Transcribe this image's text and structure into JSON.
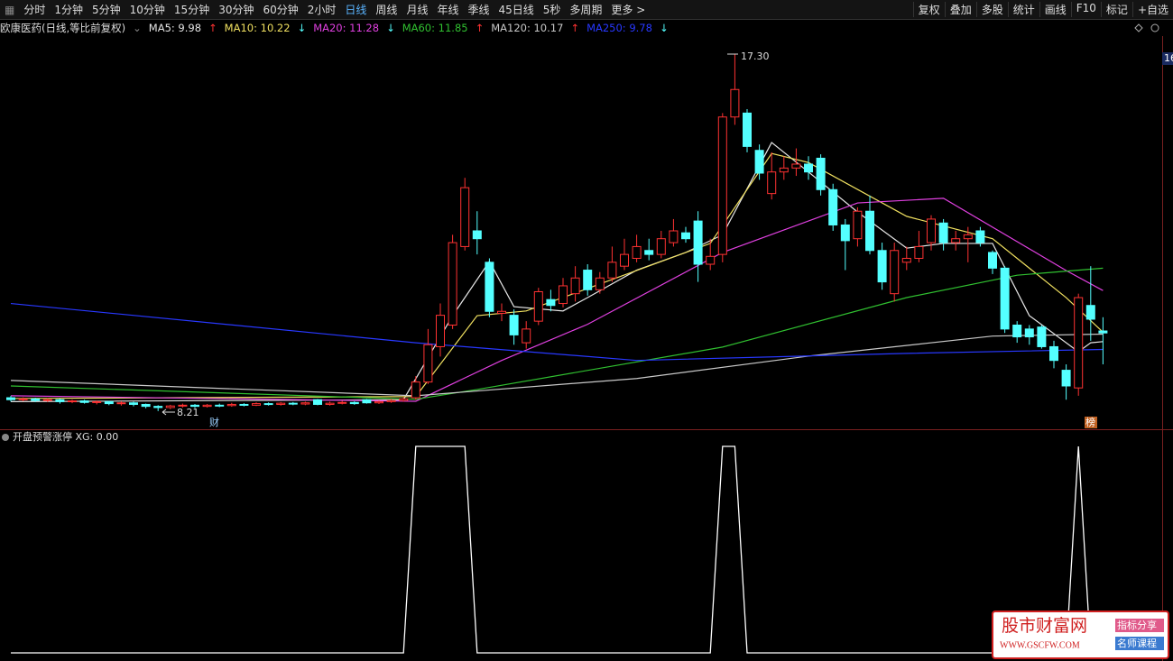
{
  "toolbar": {
    "left": [
      "分时",
      "1分钟",
      "5分钟",
      "10分钟",
      "15分钟",
      "30分钟",
      "60分钟",
      "2小时",
      "日线",
      "周线",
      "月线",
      "年线",
      "季线",
      "45日线",
      "5秒",
      "多周期",
      "更多 >"
    ],
    "selected_index": 8,
    "right": [
      "复权",
      "叠加",
      "多股",
      "统计",
      "画线",
      "F10",
      "标记",
      "+自选"
    ]
  },
  "chart_data": {
    "type": "candlestick",
    "title": "欧康医药(日线,等比前复权)",
    "ylim": [
      8.0,
      17.6
    ],
    "price_axis_label": "16",
    "candles": [
      [
        8.55,
        8.5,
        8.6,
        8.45
      ],
      [
        8.5,
        8.52,
        8.56,
        8.46
      ],
      [
        8.52,
        8.48,
        8.55,
        8.44
      ],
      [
        8.48,
        8.5,
        8.54,
        8.44
      ],
      [
        8.5,
        8.45,
        8.53,
        8.4
      ],
      [
        8.45,
        8.47,
        8.5,
        8.41
      ],
      [
        8.47,
        8.43,
        8.5,
        8.4
      ],
      [
        8.43,
        8.45,
        8.48,
        8.38
      ],
      [
        8.45,
        8.4,
        8.47,
        8.36
      ],
      [
        8.4,
        8.42,
        8.46,
        8.35
      ],
      [
        8.42,
        8.38,
        8.45,
        8.33
      ],
      [
        8.38,
        8.33,
        8.4,
        8.28
      ],
      [
        8.33,
        8.3,
        8.36,
        8.21
      ],
      [
        8.3,
        8.34,
        8.37,
        8.26
      ],
      [
        8.34,
        8.36,
        8.4,
        8.3
      ],
      [
        8.36,
        8.33,
        8.39,
        8.29
      ],
      [
        8.33,
        8.36,
        8.39,
        8.3
      ],
      [
        8.36,
        8.35,
        8.4,
        8.31
      ],
      [
        8.35,
        8.38,
        8.42,
        8.32
      ],
      [
        8.38,
        8.36,
        8.41,
        8.33
      ],
      [
        8.36,
        8.4,
        8.43,
        8.34
      ],
      [
        8.4,
        8.38,
        8.43,
        8.35
      ],
      [
        8.38,
        8.41,
        8.44,
        8.35
      ],
      [
        8.41,
        8.39,
        8.44,
        8.36
      ],
      [
        8.39,
        8.42,
        8.45,
        8.36
      ],
      [
        8.5,
        8.38,
        8.52,
        8.36
      ],
      [
        8.38,
        8.41,
        8.45,
        8.35
      ],
      [
        8.41,
        8.43,
        8.47,
        8.38
      ],
      [
        8.43,
        8.4,
        8.46,
        8.37
      ],
      [
        8.5,
        8.42,
        8.52,
        8.4
      ],
      [
        8.42,
        8.45,
        8.48,
        8.39
      ],
      [
        8.45,
        8.48,
        8.52,
        8.42
      ],
      [
        8.48,
        8.52,
        8.56,
        8.45
      ],
      [
        8.55,
        8.95,
        9.1,
        8.5
      ],
      [
        8.95,
        9.9,
        10.3,
        8.9
      ],
      [
        9.85,
        10.65,
        10.95,
        9.6
      ],
      [
        10.4,
        12.5,
        12.7,
        10.3
      ],
      [
        12.4,
        13.9,
        14.15,
        12.3
      ],
      [
        12.8,
        12.6,
        13.3,
        12.2
      ],
      [
        12.0,
        10.75,
        12.1,
        10.6
      ],
      [
        10.7,
        10.75,
        10.95,
        10.5
      ],
      [
        10.65,
        10.15,
        10.8,
        9.9
      ],
      [
        9.95,
        10.3,
        10.5,
        9.8
      ],
      [
        10.5,
        11.25,
        11.35,
        10.4
      ],
      [
        11.05,
        10.9,
        11.3,
        10.75
      ],
      [
        10.95,
        11.4,
        11.6,
        10.85
      ],
      [
        11.2,
        11.6,
        11.9,
        11.0
      ],
      [
        11.8,
        11.3,
        11.95,
        11.15
      ],
      [
        11.3,
        11.6,
        11.75,
        11.2
      ],
      [
        11.6,
        12.0,
        12.4,
        11.5
      ],
      [
        11.9,
        12.2,
        12.6,
        11.8
      ],
      [
        12.1,
        12.4,
        12.7,
        12.0
      ],
      [
        12.3,
        12.2,
        12.6,
        12.05
      ],
      [
        12.2,
        12.6,
        12.8,
        12.1
      ],
      [
        12.5,
        12.8,
        13.1,
        12.4
      ],
      [
        12.75,
        12.6,
        12.9,
        12.5
      ],
      [
        13.05,
        11.95,
        13.3,
        11.5
      ],
      [
        11.95,
        12.15,
        12.6,
        11.8
      ],
      [
        12.2,
        15.7,
        15.8,
        12.0
      ],
      [
        15.7,
        16.4,
        17.3,
        15.5
      ],
      [
        15.8,
        14.95,
        15.9,
        14.8
      ],
      [
        14.85,
        14.27,
        15.0,
        14.1
      ],
      [
        13.75,
        14.3,
        14.8,
        13.6
      ],
      [
        14.3,
        14.4,
        14.7,
        14.1
      ],
      [
        14.4,
        14.5,
        14.9,
        14.2
      ],
      [
        14.5,
        14.3,
        14.7,
        14.1
      ],
      [
        14.65,
        13.85,
        14.75,
        13.7
      ],
      [
        13.85,
        12.95,
        14.0,
        12.8
      ],
      [
        12.95,
        12.55,
        13.1,
        11.8
      ],
      [
        12.6,
        13.3,
        13.4,
        12.4
      ],
      [
        13.3,
        12.3,
        13.7,
        12.2
      ],
      [
        12.3,
        11.5,
        12.5,
        11.3
      ],
      [
        11.2,
        12.3,
        12.5,
        11.0
      ],
      [
        12.0,
        12.1,
        12.4,
        11.8
      ],
      [
        12.1,
        12.4,
        12.8,
        12.0
      ],
      [
        12.5,
        13.1,
        13.2,
        12.3
      ],
      [
        13.0,
        12.5,
        13.1,
        12.3
      ],
      [
        12.5,
        12.6,
        12.8,
        12.3
      ],
      [
        12.6,
        12.7,
        12.9,
        12.0
      ],
      [
        12.8,
        12.5,
        12.9,
        12.4
      ],
      [
        12.25,
        11.85,
        12.3,
        11.7
      ],
      [
        11.85,
        10.3,
        11.9,
        10.2
      ],
      [
        10.4,
        10.1,
        10.5,
        9.95
      ],
      [
        10.3,
        10.1,
        10.4,
        9.9
      ],
      [
        10.35,
        9.85,
        10.4,
        9.8
      ],
      [
        9.85,
        9.5,
        10.0,
        9.3
      ],
      [
        9.25,
        8.85,
        9.4,
        8.5
      ],
      [
        8.8,
        11.1,
        11.2,
        8.6
      ],
      [
        10.9,
        10.55,
        11.9,
        10.0
      ],
      [
        10.25,
        10.2,
        10.6,
        9.4
      ]
    ],
    "up_color": "#ff3232",
    "down_color": "#54ffff",
    "series": [
      {
        "name": "MA5",
        "label": "MA5: 9.98",
        "arrow": "↑",
        "color": "#e6e6e6",
        "x": [
          0,
          32,
          36,
          39,
          41,
          45,
          47,
          51,
          55,
          58,
          62,
          65,
          69,
          73,
          76,
          80,
          83,
          87,
          88,
          89
        ],
        "values": [
          8.45,
          8.5,
          10.64,
          12.02,
          10.87,
          10.76,
          11.1,
          11.8,
          12.25,
          12.7,
          15.05,
          14.3,
          13.28,
          12.36,
          12.48,
          12.48,
          10.64,
          9.72,
          9.95,
          9.98
        ]
      },
      {
        "name": "MA10",
        "label": "MA10: 10.22",
        "arrow": "↓",
        "color": "#f0e060",
        "x": [
          0,
          33,
          38,
          42,
          51,
          57,
          62,
          65,
          73,
          80,
          86,
          89
        ],
        "values": [
          8.53,
          8.58,
          10.64,
          10.76,
          11.79,
          12.48,
          14.77,
          14.54,
          13.17,
          12.6,
          11.1,
          10.22
        ]
      },
      {
        "name": "MA20",
        "label": "MA20: 11.28",
        "arrow": "↓",
        "color": "#e040e0",
        "x": [
          0,
          33,
          40,
          47,
          58,
          69,
          76,
          86,
          89
        ],
        "values": [
          8.6,
          8.46,
          9.5,
          10.42,
          12.25,
          13.51,
          13.63,
          11.79,
          11.28
        ]
      },
      {
        "name": "MA60",
        "label": "MA60: 11.85",
        "arrow": "↑",
        "color": "#30c030",
        "x": [
          0,
          33,
          38,
          58,
          73,
          82,
          89
        ],
        "values": [
          8.85,
          8.51,
          8.76,
          9.84,
          11.1,
          11.67,
          11.85
        ]
      },
      {
        "name": "MA120",
        "label": "MA120: 10.17",
        "arrow": "↑",
        "color": "#c8c8c8",
        "x": [
          0,
          33,
          51,
          65,
          80,
          89
        ],
        "values": [
          8.99,
          8.6,
          9.04,
          9.61,
          10.12,
          10.17
        ]
      },
      {
        "name": "MA250",
        "label": "MA250: 9.78",
        "arrow": "↓",
        "color": "#2838ff",
        "x": [
          0,
          33,
          51,
          73,
          89
        ],
        "values": [
          10.95,
          9.95,
          9.5,
          9.68,
          9.78
        ]
      }
    ],
    "annotations": {
      "high": "17.30",
      "low": "8.21",
      "mark_a": "财",
      "mark_b": "榜"
    }
  },
  "indicator": {
    "type": "line",
    "title": "开盘预警涨停 XG: 0.00",
    "ylim": [
      0,
      1
    ],
    "color": "#ffffff",
    "x": [
      0,
      32,
      33,
      37,
      38,
      57,
      58,
      59,
      60,
      86,
      87,
      88,
      89
    ],
    "values": [
      0,
      0,
      1,
      1,
      0,
      0,
      1,
      1,
      0,
      0,
      1,
      0,
      0
    ]
  },
  "watermark": {
    "name": "股市财富网",
    "url": "WWW.GSCFW.COM",
    "tag1": "指标分享",
    "tag2": "名师课程"
  }
}
